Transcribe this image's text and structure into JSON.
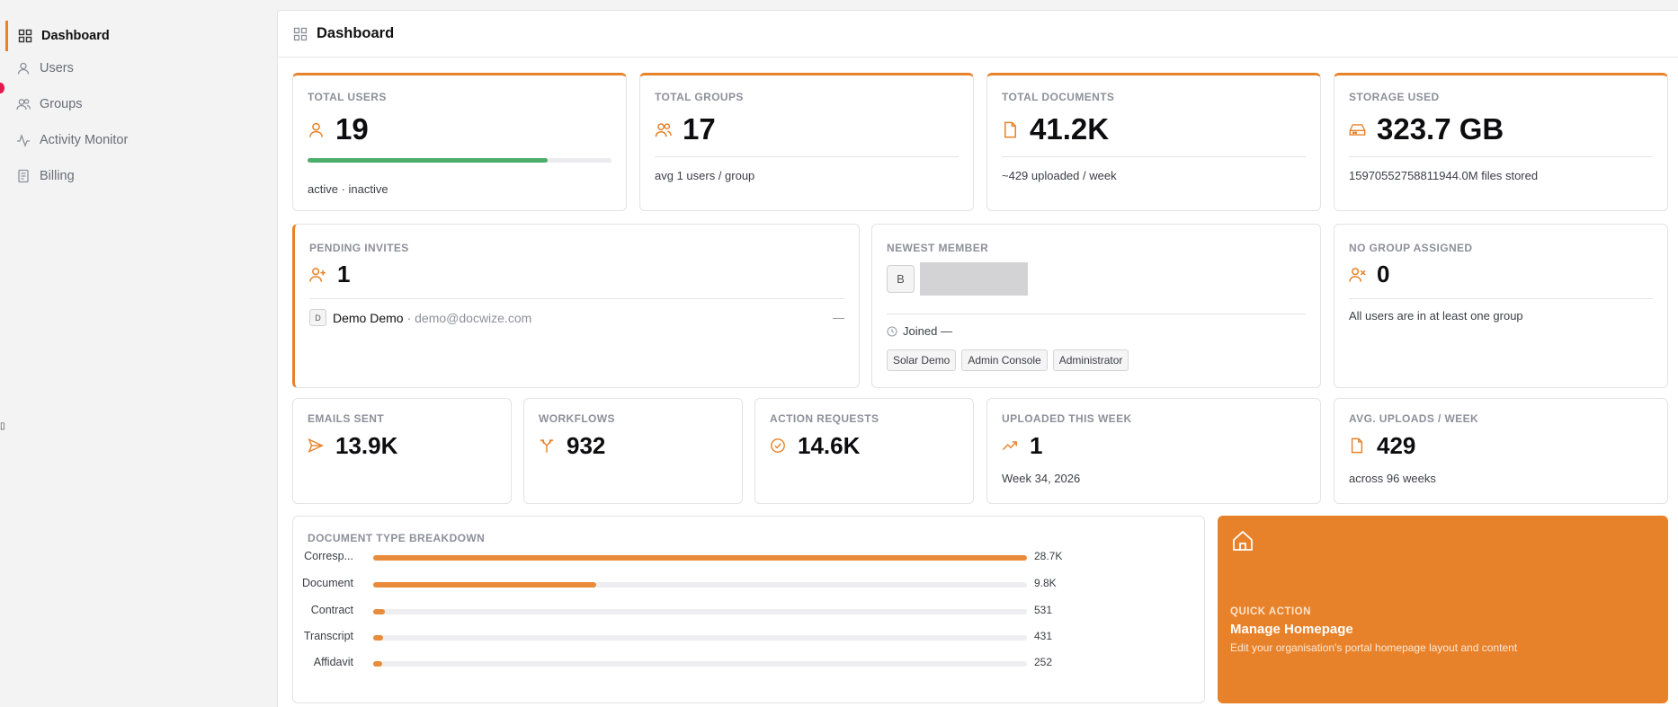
{
  "sidebar": {
    "items": [
      {
        "label": "Dashboard",
        "icon": "grid-icon",
        "active": true
      },
      {
        "label": "Users",
        "icon": "user-icon"
      },
      {
        "label": "Groups",
        "icon": "users-icon"
      },
      {
        "label": "Activity Monitor",
        "icon": "activity-icon"
      },
      {
        "label": "Billing",
        "icon": "receipt-icon"
      }
    ]
  },
  "header": {
    "title": "Dashboard"
  },
  "stats": {
    "total_users": {
      "label": "TOTAL USERS",
      "value": "19",
      "sub": "active · inactive",
      "active_fraction": 0.79
    },
    "total_groups": {
      "label": "TOTAL GROUPS",
      "value": "17",
      "sub": "avg 1 users / group"
    },
    "total_documents": {
      "label": "TOTAL DOCUMENTS",
      "value": "41.2K",
      "sub": "~429 uploaded / week"
    },
    "storage_used": {
      "label": "STORAGE USED",
      "value": "323.7 GB",
      "sub": "15970552758811944.0M files stored"
    }
  },
  "pending_invites": {
    "label": "PENDING INVITES",
    "value": "1",
    "invite": {
      "initial": "D",
      "name": "Demo Demo",
      "email": "· demo@docwize.com",
      "status": "—"
    }
  },
  "newest_member": {
    "label": "NEWEST MEMBER",
    "initial": "B",
    "joined": "Joined —",
    "tags": [
      "Solar Demo",
      "Admin Console",
      "Administrator"
    ]
  },
  "no_group": {
    "label": "NO GROUP ASSIGNED",
    "value": "0",
    "sub": "All users are in at least one group"
  },
  "row3": {
    "emails_sent": {
      "label": "EMAILS SENT",
      "value": "13.9K"
    },
    "workflows": {
      "label": "WORKFLOWS",
      "value": "932"
    },
    "action_requests": {
      "label": "ACTION REQUESTS",
      "value": "14.6K"
    },
    "uploaded_week": {
      "label": "UPLOADED THIS WEEK",
      "value": "1",
      "sub": "Week 34, 2026"
    },
    "avg_uploads": {
      "label": "AVG. UPLOADS / WEEK",
      "value": "429",
      "sub": "across 96 weeks"
    }
  },
  "breakdown": {
    "label": "DOCUMENT TYPE BREAKDOWN",
    "items": [
      {
        "label": "Corresp...",
        "display": "28.7K",
        "fraction": 1.0
      },
      {
        "label": "Document",
        "display": "9.8K",
        "fraction": 0.341
      },
      {
        "label": "Contract",
        "display": "531",
        "fraction": 0.0185
      },
      {
        "label": "Transcript",
        "display": "431",
        "fraction": 0.015
      },
      {
        "label": "Affidavit",
        "display": "252",
        "fraction": 0.0088
      }
    ]
  },
  "quick_action": {
    "label": "QUICK ACTION",
    "title": "Manage Homepage",
    "desc": "Edit your organisation's portal homepage layout and content"
  },
  "colors": {
    "accent": "#e8822a",
    "progress_green": "#4cae6a"
  }
}
